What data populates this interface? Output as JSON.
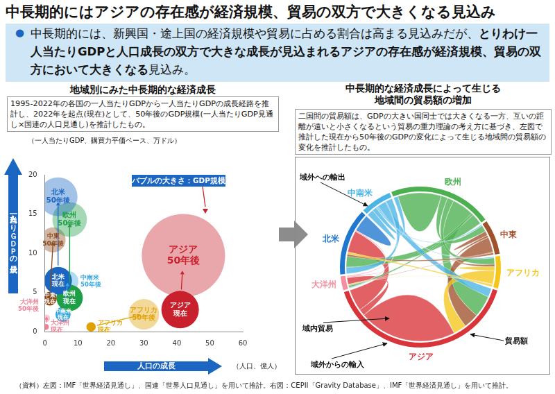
{
  "title": "中長期的にはアジアの存在感が経済規模、貿易の双方で大きくなる見込み",
  "summary": {
    "bullet": "●",
    "text_before": "中長期的には、新興国・途上国の経済規模や貿易に占める割合は高まる見込みだが、",
    "text_bold": "とりわけ一人当たりGDPと人口成長の双方で大きな成長が見込まれるアジアの存在感が経済規模、貿易の双方において大きくなる",
    "text_after": "見込み。"
  },
  "left_panel": {
    "heading": "地域別にみた中長期的な経済成長",
    "description": "1995-2022年の各国の一人当たりGDPから一人当たりGDPの成長経路を推計し、2022年を起点(現在)として、50年後のGDP規模(一人当たりGDP見通し×国連の人口見通し)を推計したもの。"
  },
  "chart_data": {
    "type": "bubble",
    "y_label": "（一人当たりGDP、購買力平価ベース、万ドル）",
    "x_label": "（人口、億人）",
    "y_arrow_label": "一人当たりＧＤＰの成長",
    "x_arrow_label": "人口の成長",
    "size_label": "バブルの大きさ：GDP規模の成長",
    "xlim": [
      0,
      60
    ],
    "xticks": [
      0,
      10,
      20,
      30,
      40,
      50,
      60
    ],
    "ylim": [
      0,
      20
    ],
    "yticks": [
      0,
      5,
      10,
      15,
      20
    ],
    "grid": false,
    "series": [
      {
        "name": "北米",
        "color": "#1a66c2",
        "points": [
          {
            "label": "現在",
            "x": 4,
            "y": 6.5,
            "size": 44
          },
          {
            "label": "50年後",
            "x": 4,
            "y": 17.2,
            "size": 87
          }
        ]
      },
      {
        "name": "欧州",
        "color": "#1e9e46",
        "points": [
          {
            "label": "現在",
            "x": 7.5,
            "y": 4.3,
            "size": 40
          },
          {
            "label": "50年後",
            "x": 7.5,
            "y": 14.3,
            "size": 69
          }
        ]
      },
      {
        "name": "中東",
        "color": "#8b4a1c",
        "points": [
          {
            "label": "現在",
            "x": 1.5,
            "y": 4.2,
            "size": 11
          },
          {
            "label": "50年後",
            "x": 2.5,
            "y": 11.7,
            "size": 36
          }
        ]
      },
      {
        "name": "中南米",
        "color": "#3aa8e0",
        "points": [
          {
            "label": "現在",
            "x": 5.5,
            "y": 2.2,
            "size": 13
          },
          {
            "label": "50年後",
            "x": 7.0,
            "y": 6.4,
            "size": 25
          }
        ]
      },
      {
        "name": "大洋州",
        "color": "#ef7f95",
        "points": [
          {
            "label": "現在",
            "x": 0.3,
            "y": 0.6,
            "size": 2
          },
          {
            "label": "50年後",
            "x": 0.5,
            "y": 1.7,
            "size": 3
          }
        ]
      },
      {
        "name": "アフリカ",
        "color": "#e0a000",
        "points": [
          {
            "label": "現在",
            "x": 14,
            "y": 0.6,
            "size": 5
          },
          {
            "label": "50年後",
            "x": 30,
            "y": 2.2,
            "size": 54
          }
        ]
      },
      {
        "name": "アジア",
        "color": "#c8202c",
        "points": [
          {
            "label": "現在",
            "x": 41,
            "y": 2.8,
            "size": 81
          },
          {
            "label": "50年後",
            "x": 42,
            "y": 9.7,
            "size": 400
          }
        ]
      }
    ]
  },
  "right_panel": {
    "heading": [
      "中長期的な経済成長によって生じる",
      "地域間の貿易額の増加"
    ],
    "description": "二国間の貿易額は、GDPの大きい国同士では大きくなる一方、互いの距離が遠いと小さくなるという貿易の重力理論の考え方に基づき、左図で推計した現在から50年後のGDPの変化によって生じる地域間の貿易額の変化を推計したもの。",
    "diagram": {
      "type": "chord",
      "groups": [
        {
          "name": "中南米",
          "color": "#4ab4e6"
        },
        {
          "name": "欧州",
          "color": "#4caf50"
        },
        {
          "name": "中東",
          "color": "#a0522d"
        },
        {
          "name": "アフリカ",
          "color": "#f5c518"
        },
        {
          "name": "アジア",
          "color": "#d9343a"
        },
        {
          "name": "大洋州",
          "color": "#f48fa0"
        },
        {
          "name": "北米",
          "color": "#1f77d0"
        }
      ],
      "matrix": [
        [
          3,
          2,
          0.5,
          0.5,
          4,
          0.3,
          3
        ],
        [
          2,
          20,
          3,
          3,
          10,
          1,
          5
        ],
        [
          0.5,
          3,
          2,
          1,
          7,
          0.3,
          1
        ],
        [
          0.5,
          3,
          1,
          2,
          6,
          0.3,
          1
        ],
        [
          4,
          10,
          7,
          6,
          45,
          3,
          10
        ],
        [
          0.3,
          1,
          0.3,
          0.3,
          3,
          0.5,
          0.5
        ],
        [
          3,
          5,
          1,
          1,
          10,
          0.5,
          8
        ]
      ],
      "annotations": {
        "export": "域外への輸出",
        "intra": "域内貿易",
        "import": "域外からの輸入",
        "volume": "貿易額"
      }
    }
  },
  "source": "（資料）左図：IMF「世界経済見通し」、国連「世界人口見通し」を用いて推計。右図：CEPII「Gravity Database」、IMF「世界経済見通し」を用いて推計。"
}
